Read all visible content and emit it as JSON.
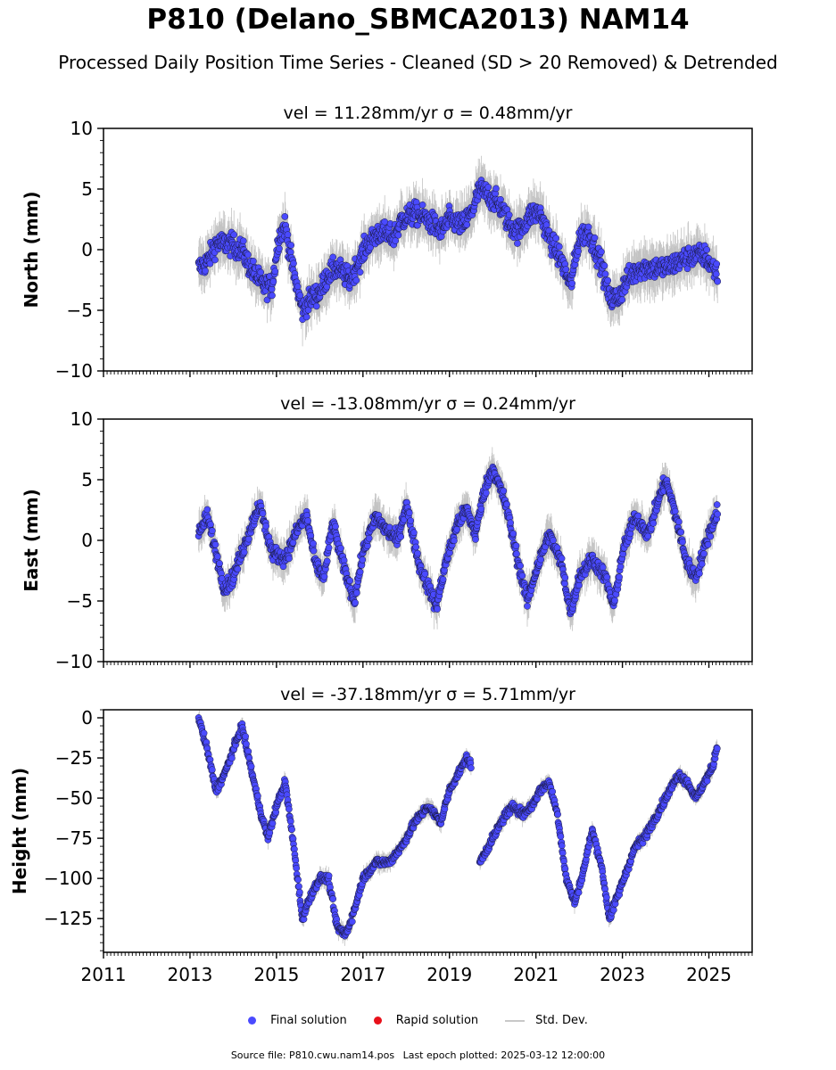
{
  "header": {
    "title": "P810 (Delano_SBMCA2013) NAM14",
    "subtitle": "Processed Daily Position Time Series - Cleaned (SD > 20 Removed) & Detrended"
  },
  "legend": {
    "final": "Final solution",
    "rapid": "Rapid solution",
    "std": "Std. Dev.",
    "final_color": "#4a4aff",
    "rapid_color": "#e8101a",
    "std_color": "#c8c8c8"
  },
  "footer": {
    "source": "Source file: P810.cwu.nam14.pos",
    "last_epoch": "Last epoch plotted: 2025-03-12 12:00:00"
  },
  "chart_data": [
    {
      "type": "scatter",
      "ylabel": "North (mm)",
      "title": "vel = 11.28mm/yr   σ = 0.48mm/yr",
      "xlim": [
        2011,
        2026
      ],
      "ylim": [
        -10,
        10
      ],
      "xticks": [
        2011,
        2013,
        2015,
        2017,
        2019,
        2021,
        2023,
        2025
      ],
      "yticks": [
        10,
        5,
        0,
        -5,
        -10
      ],
      "ytick_labels": [
        "10",
        "5",
        "0",
        "−5",
        "−10"
      ],
      "noise": 0.9,
      "sd": 1.6,
      "x": [
        2013.2,
        2013.4,
        2013.6,
        2013.9,
        2014.2,
        2014.4,
        2014.7,
        2014.9,
        2015.05,
        2015.2,
        2015.4,
        2015.6,
        2015.8,
        2016.0,
        2016.2,
        2016.4,
        2016.7,
        2016.9,
        2017.1,
        2017.4,
        2017.7,
        2017.9,
        2018.2,
        2018.5,
        2018.8,
        2019.0,
        2019.3,
        2019.5,
        2019.7,
        2019.9,
        2020.2,
        2020.4,
        2020.6,
        2020.9,
        2021.1,
        2021.3,
        2021.6,
        2021.8,
        2022.0,
        2022.2,
        2022.5,
        2022.7,
        2022.9,
        2023.1,
        2023.4,
        2023.7,
        2024.0,
        2024.3,
        2024.6,
        2024.9,
        2025.2
      ],
      "y": [
        -1.5,
        -1.0,
        0.5,
        0.5,
        0.0,
        -1.5,
        -3.0,
        -3.0,
        1.0,
        2.0,
        -2.0,
        -5.0,
        -4.0,
        -3.5,
        -2.0,
        -1.5,
        -2.5,
        -1.0,
        0.5,
        1.5,
        1.0,
        2.5,
        3.0,
        2.5,
        1.5,
        2.5,
        2.0,
        3.0,
        5.0,
        4.5,
        3.5,
        2.0,
        1.5,
        3.0,
        3.0,
        1.0,
        -1.0,
        -3.0,
        1.0,
        1.5,
        -1.0,
        -4.0,
        -4.0,
        -2.5,
        -1.5,
        -1.5,
        -1.5,
        -1.0,
        -0.5,
        -0.5,
        -2.0
      ]
    },
    {
      "type": "scatter",
      "ylabel": "East (mm)",
      "title": "vel = -13.08mm/yr   σ = 0.24mm/yr",
      "xlim": [
        2011,
        2026
      ],
      "ylim": [
        -10,
        10
      ],
      "xticks": [
        2011,
        2013,
        2015,
        2017,
        2019,
        2021,
        2023,
        2025
      ],
      "yticks": [
        10,
        5,
        0,
        -5,
        -10
      ],
      "ytick_labels": [
        "10",
        "5",
        "0",
        "−5",
        "−10"
      ],
      "noise": 0.6,
      "sd": 1.3,
      "x": [
        2013.2,
        2013.4,
        2013.8,
        2014.0,
        2014.3,
        2014.6,
        2014.9,
        2015.2,
        2015.5,
        2015.7,
        2015.9,
        2016.1,
        2016.3,
        2016.5,
        2016.8,
        2017.0,
        2017.3,
        2017.5,
        2017.8,
        2018.0,
        2018.3,
        2018.7,
        2018.9,
        2019.2,
        2019.4,
        2019.6,
        2019.8,
        2020.0,
        2020.3,
        2020.6,
        2020.8,
        2021.0,
        2021.3,
        2021.6,
        2021.8,
        2022.0,
        2022.3,
        2022.6,
        2022.8,
        2023.0,
        2023.3,
        2023.6,
        2023.8,
        2024.0,
        2024.2,
        2024.5,
        2024.7,
        2025.0,
        2025.2
      ],
      "y": [
        0.5,
        2.0,
        -4.0,
        -3.0,
        0.0,
        3.0,
        -1.0,
        -1.5,
        1.0,
        2.0,
        -2.0,
        -3.0,
        1.5,
        -1.5,
        -5.0,
        -1.0,
        2.0,
        1.0,
        0.0,
        3.0,
        -2.0,
        -5.5,
        -2.0,
        1.5,
        2.5,
        0.5,
        4.0,
        6.0,
        3.0,
        -2.0,
        -5.0,
        -2.5,
        0.5,
        -2.0,
        -6.0,
        -3.0,
        -1.5,
        -3.0,
        -5.5,
        -1.0,
        2.0,
        0.5,
        3.0,
        5.0,
        2.5,
        -2.0,
        -3.0,
        0.5,
        2.5
      ]
    },
    {
      "type": "scatter",
      "ylabel": "Height (mm)",
      "title": "vel = -37.18mm/yr   σ = 5.71mm/yr",
      "xlim": [
        2011,
        2026
      ],
      "ylim": [
        -146,
        5
      ],
      "xticks": [
        2011,
        2013,
        2015,
        2017,
        2019,
        2021,
        2023,
        2025
      ],
      "xtick_labels": [
        "2011",
        "2013",
        "2015",
        "2017",
        "2019",
        "2021",
        "2023",
        "2025"
      ],
      "yticks": [
        0,
        -25,
        -50,
        -75,
        -100,
        -125
      ],
      "ytick_labels": [
        "0",
        "−25",
        "−50",
        "−75",
        "−100",
        "−125"
      ],
      "noise": 2.5,
      "sd": 4.5,
      "x": [
        2013.2,
        2013.4,
        2013.6,
        2013.8,
        2014.0,
        2014.2,
        2014.4,
        2014.6,
        2014.8,
        2015.0,
        2015.2,
        2015.4,
        2015.6,
        2015.8,
        2016.0,
        2016.2,
        2016.4,
        2016.6,
        2016.8,
        2017.0,
        2017.3,
        2017.6,
        2017.9,
        2018.2,
        2018.5,
        2018.8,
        2019.0,
        2019.2,
        2019.3,
        2019.4,
        2019.5
      ],
      "y": [
        0,
        -20,
        -45,
        -35,
        -20,
        -5,
        -30,
        -55,
        -75,
        -55,
        -40,
        -80,
        -125,
        -110,
        -100,
        -100,
        -130,
        -135,
        -120,
        -100,
        -90,
        -90,
        -80,
        -65,
        -55,
        -65,
        -45,
        -35,
        -30,
        -25,
        -30
      ]
    }
  ],
  "height_segment2": {
    "x": [
      2019.7,
      2019.9,
      2020.1,
      2020.3,
      2020.5,
      2020.7,
      2020.9,
      2021.1,
      2021.3,
      2021.5,
      2021.7,
      2021.9,
      2022.1,
      2022.3,
      2022.5,
      2022.7,
      2022.9,
      2023.1,
      2023.3,
      2023.5,
      2023.7,
      2023.9,
      2024.1,
      2024.3,
      2024.5,
      2024.7,
      2024.9,
      2025.1,
      2025.2
    ],
    "y": [
      -90,
      -80,
      -70,
      -60,
      -55,
      -60,
      -55,
      -45,
      -40,
      -60,
      -100,
      -115,
      -95,
      -70,
      -90,
      -125,
      -110,
      -95,
      -80,
      -75,
      -65,
      -55,
      -45,
      -35,
      -40,
      -50,
      -40,
      -30,
      -15
    ]
  }
}
